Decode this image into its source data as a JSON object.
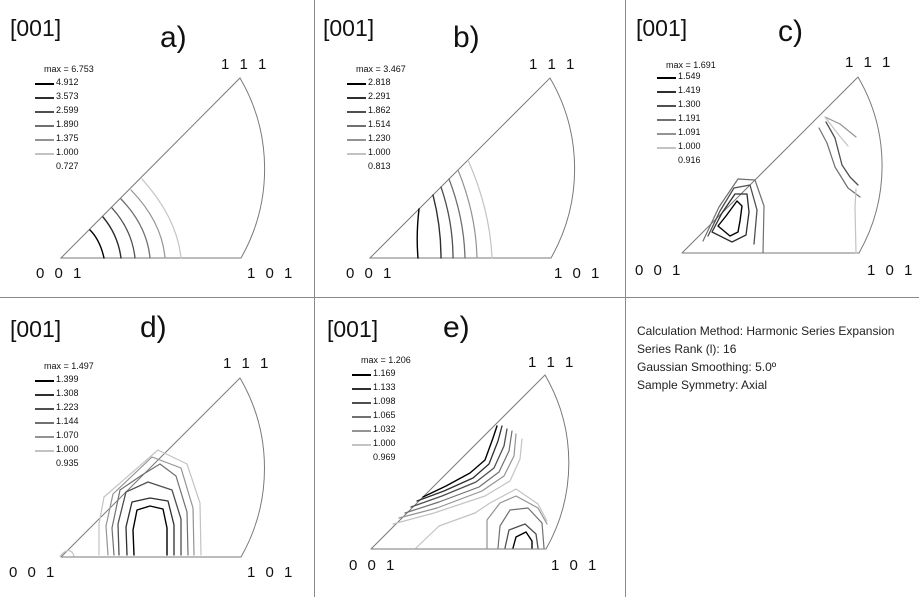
{
  "panels": [
    {
      "letter": "a)",
      "direction": "[001]",
      "max_label": "max = 6.753",
      "vertex_top": "1 1 1",
      "vertex_left": "0 0 1",
      "vertex_right": "1 0 1",
      "legend": [
        {
          "value": "4.912",
          "color": "#000000"
        },
        {
          "value": "3.573",
          "color": "#2e2e2e"
        },
        {
          "value": "2.599",
          "color": "#4f4f4f"
        },
        {
          "value": "1.890",
          "color": "#707070"
        },
        {
          "value": "1.375",
          "color": "#939393"
        },
        {
          "value": "1.000",
          "color": "#c3c3c3"
        },
        {
          "value": "0.727",
          "color": null
        }
      ]
    },
    {
      "letter": "b)",
      "direction": "[001]",
      "max_label": "max = 3.467",
      "vertex_top": "1 1 1",
      "vertex_left": "0 0 1",
      "vertex_right": "1 0 1",
      "legend": [
        {
          "value": "2.818",
          "color": "#000000"
        },
        {
          "value": "2.291",
          "color": "#2e2e2e"
        },
        {
          "value": "1.862",
          "color": "#4f4f4f"
        },
        {
          "value": "1.514",
          "color": "#707070"
        },
        {
          "value": "1.230",
          "color": "#939393"
        },
        {
          "value": "1.000",
          "color": "#c3c3c3"
        },
        {
          "value": "0.813",
          "color": null
        }
      ]
    },
    {
      "letter": "c)",
      "direction": "[001]",
      "max_label": "max = 1.691",
      "vertex_top": "1 1 1",
      "vertex_left": "0 0 1",
      "vertex_right": "1 0 1",
      "legend": [
        {
          "value": "1.549",
          "color": "#000000"
        },
        {
          "value": "1.419",
          "color": "#2e2e2e"
        },
        {
          "value": "1.300",
          "color": "#4f4f4f"
        },
        {
          "value": "1.191",
          "color": "#707070"
        },
        {
          "value": "1.091",
          "color": "#939393"
        },
        {
          "value": "1.000",
          "color": "#c3c3c3"
        },
        {
          "value": "0.916",
          "color": null
        }
      ]
    },
    {
      "letter": "d)",
      "direction": "[001]",
      "max_label": "max = 1.497",
      "vertex_top": "1 1 1",
      "vertex_left": "0 0 1",
      "vertex_right": "1 0 1",
      "legend": [
        {
          "value": "1.399",
          "color": "#000000"
        },
        {
          "value": "1.308",
          "color": "#2e2e2e"
        },
        {
          "value": "1.223",
          "color": "#4f4f4f"
        },
        {
          "value": "1.144",
          "color": "#707070"
        },
        {
          "value": "1.070",
          "color": "#939393"
        },
        {
          "value": "1.000",
          "color": "#c3c3c3"
        },
        {
          "value": "0.935",
          "color": null
        }
      ]
    },
    {
      "letter": "e)",
      "direction": "[001]",
      "max_label": "max = 1.206",
      "vertex_top": "1 1 1",
      "vertex_left": "0 0 1",
      "vertex_right": "1 0 1",
      "legend": [
        {
          "value": "1.169",
          "color": "#000000"
        },
        {
          "value": "1.133",
          "color": "#2e2e2e"
        },
        {
          "value": "1.098",
          "color": "#4f4f4f"
        },
        {
          "value": "1.065",
          "color": "#707070"
        },
        {
          "value": "1.032",
          "color": "#939393"
        },
        {
          "value": "1.000",
          "color": "#c3c3c3"
        },
        {
          "value": "0.969",
          "color": null
        }
      ]
    }
  ],
  "info": {
    "method": "Calculation Method: Harmonic Series Expansion",
    "rank": "Series Rank (l): 16",
    "smoothing": "Gaussian Smoothing: 5.0º",
    "symmetry": "Sample Symmetry: Axial"
  },
  "colors": {
    "separator": "#8a8a8a",
    "outline": "#7a7a7a",
    "background": "#ffffff"
  }
}
